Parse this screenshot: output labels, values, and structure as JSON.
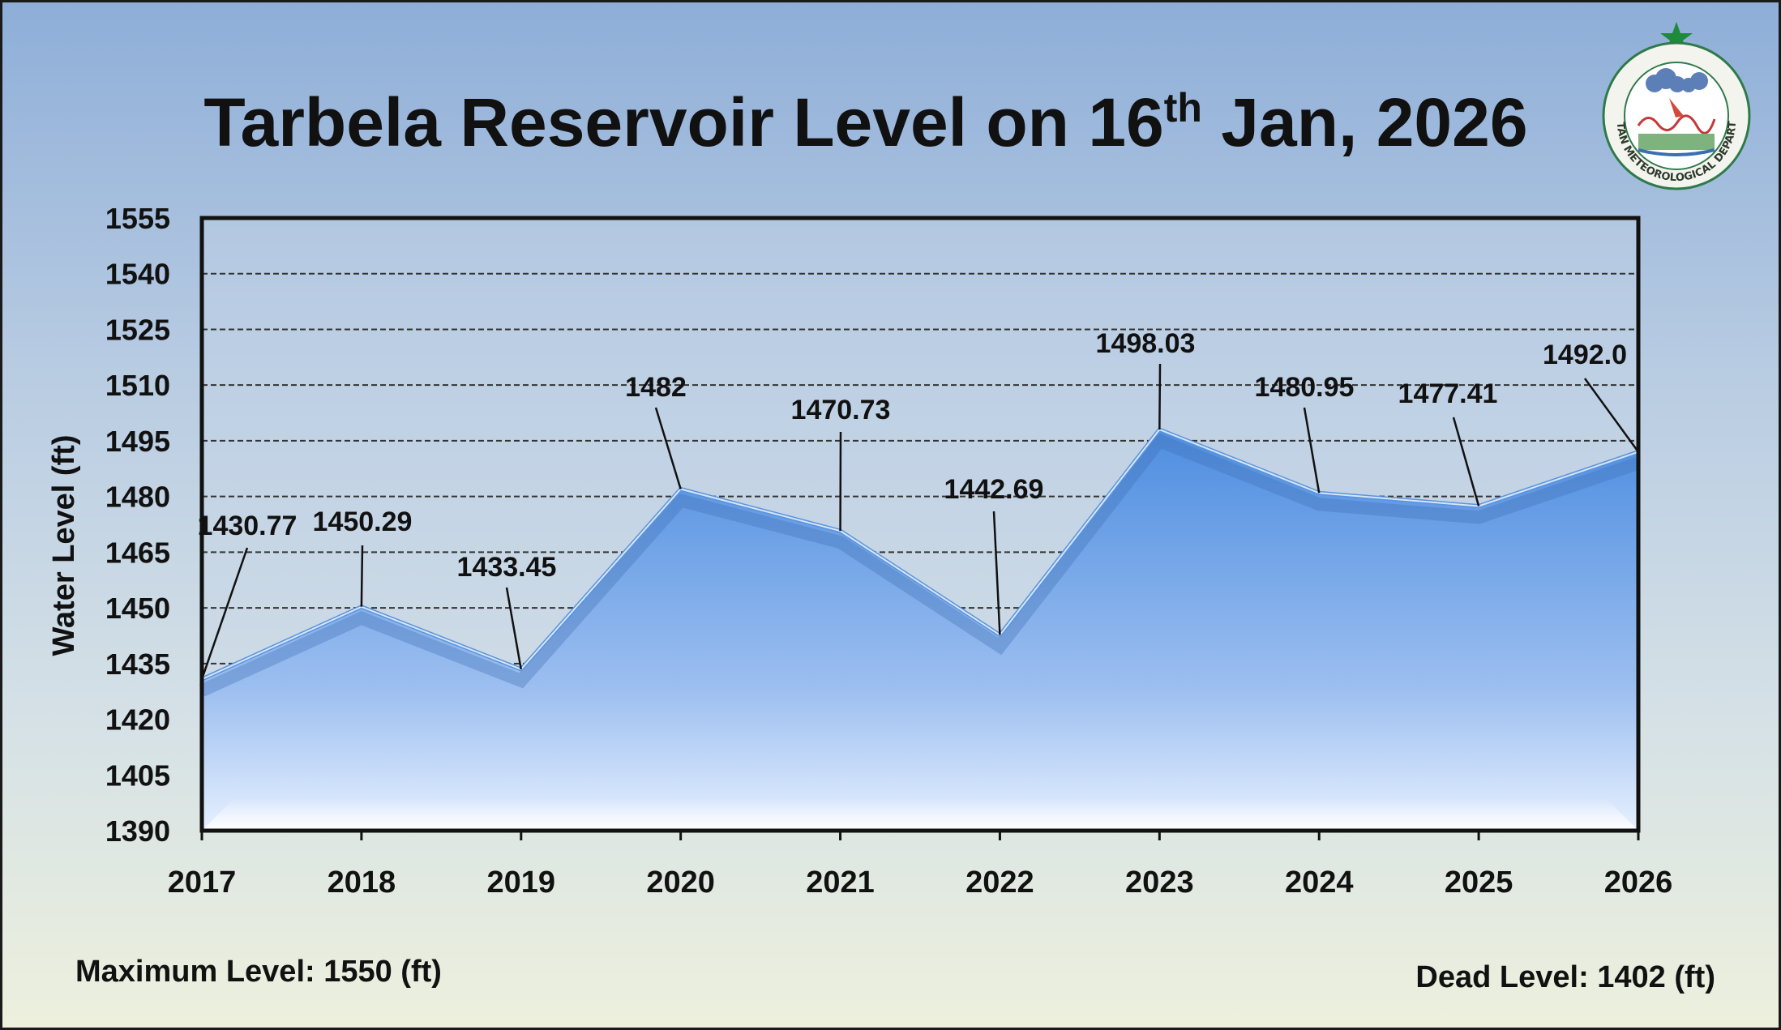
{
  "title": {
    "prefix": "Tarbela Reservoir Level on 16",
    "superscript": "th",
    "suffix": " Jan, 2026"
  },
  "footer": {
    "max_level": "Maximum Level: 1550 (ft)",
    "dead_level": "Dead Level: 1402 (ft)"
  },
  "logo": {
    "text": "PAKISTAN METEOROLOGICAL DEPARTMENT"
  },
  "colors": {
    "area_top": "#4d8de0",
    "area_bottom": "#e6f0ff",
    "background_top": "#8eaed8",
    "background_bottom": "#edf0dd"
  },
  "chart_data": {
    "type": "area",
    "title": "Tarbela Reservoir Level on 16th Jan, 2026",
    "xlabel": "",
    "ylabel": "Water Level (ft)",
    "categories": [
      "2017",
      "2018",
      "2019",
      "2020",
      "2021",
      "2022",
      "2023",
      "2024",
      "2025",
      "2026"
    ],
    "values": [
      1430.77,
      1450.29,
      1433.45,
      1482,
      1470.73,
      1442.69,
      1498.03,
      1480.95,
      1477.41,
      1492.0
    ],
    "data_labels": [
      "1430.77",
      "1450.29",
      "1433.45",
      "1482",
      "1470.73",
      "1442.69",
      "1498.03",
      "1480.95",
      "1477.41",
      "1492.0"
    ],
    "ylim": [
      1390,
      1555
    ],
    "yticks": [
      1390,
      1405,
      1420,
      1435,
      1450,
      1465,
      1480,
      1495,
      1510,
      1525,
      1540,
      1555
    ],
    "grid": "horizontal dashed",
    "legend": "none"
  }
}
